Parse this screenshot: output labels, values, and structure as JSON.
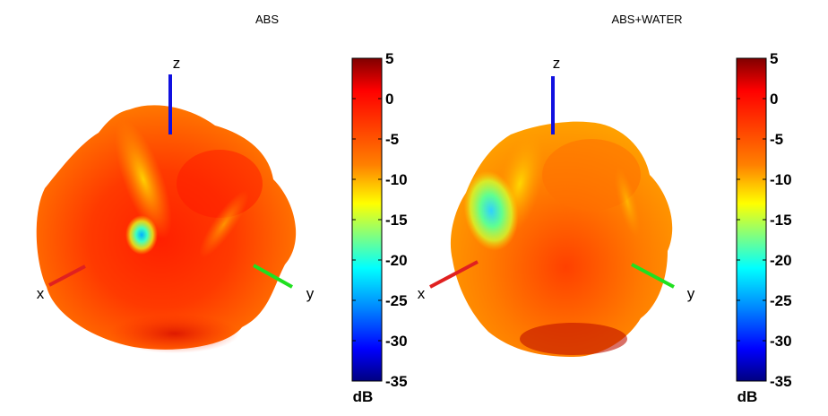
{
  "chart_data": [
    {
      "type": "3d-radiation-pattern",
      "title": "ABS",
      "axes": {
        "x": "x",
        "y": "y",
        "z": "z"
      },
      "colorbar": {
        "unit": "dB",
        "range": [
          -35,
          5
        ],
        "ticks": [
          5,
          0,
          -5,
          -10,
          -15,
          -20,
          -25,
          -30,
          -35
        ],
        "colormap": "jet"
      },
      "surface_level_range_db": [
        -22,
        2
      ]
    },
    {
      "type": "3d-radiation-pattern",
      "title": "ABS+WATER",
      "axes": {
        "x": "x",
        "y": "y",
        "z": "z"
      },
      "colorbar": {
        "unit": "dB",
        "range": [
          -35,
          5
        ],
        "ticks": [
          5,
          0,
          -5,
          -10,
          -15,
          -20,
          -25,
          -30,
          -35
        ],
        "colormap": "jet"
      },
      "surface_level_range_db": [
        -18,
        2
      ]
    }
  ],
  "colors": {
    "x_axis": "#e02020",
    "y_axis": "#20e020",
    "z_axis": "#1010e0",
    "jet": [
      "#800000",
      "#ff0000",
      "#ff8000",
      "#ffff00",
      "#80ff80",
      "#00ffff",
      "#0080ff",
      "#0000ff",
      "#000080"
    ]
  }
}
